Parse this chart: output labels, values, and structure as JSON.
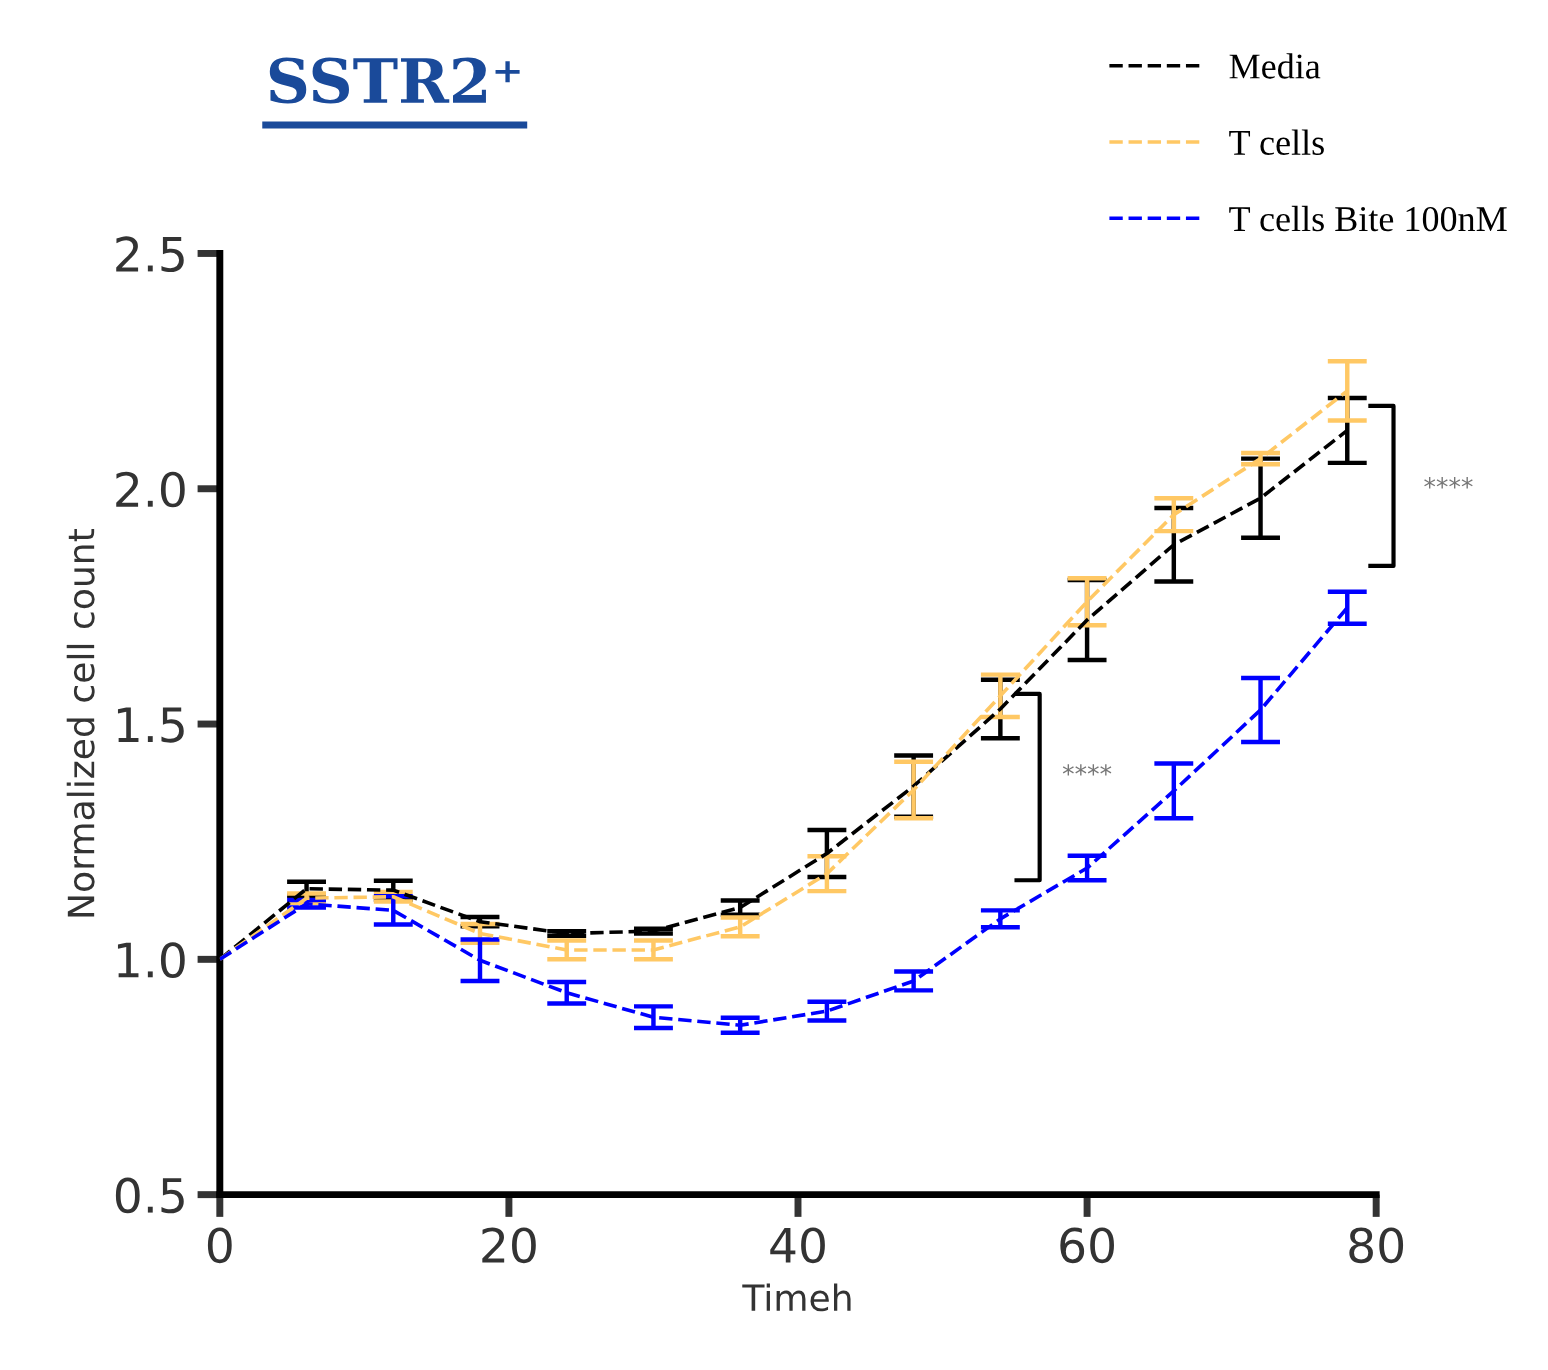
{
  "chart_data": {
    "type": "line",
    "title": "SSTR2⁺",
    "xlabel": "Timeh",
    "ylabel": "Normalized cell count",
    "x": [
      0,
      6,
      12,
      18,
      24,
      30,
      36,
      42,
      48,
      54,
      60,
      66,
      72,
      78
    ],
    "series": [
      {
        "name": "Media",
        "color": "#000000",
        "values": [
          1.0,
          1.15,
          1.147,
          1.08,
          1.055,
          1.06,
          1.11,
          1.225,
          1.368,
          1.532,
          1.721,
          1.881,
          1.98,
          2.124
        ],
        "errors": [
          null,
          0.015,
          0.02,
          0.01,
          0.005,
          0.005,
          0.015,
          0.05,
          0.065,
          0.062,
          0.085,
          0.078,
          0.084,
          0.069
        ]
      },
      {
        "name": "T cells",
        "color": "#ffc864",
        "values": [
          1.0,
          1.13,
          1.133,
          1.055,
          1.02,
          1.02,
          1.069,
          1.182,
          1.36,
          1.56,
          1.76,
          1.945,
          2.064,
          2.208
        ],
        "errors": [
          null,
          0.01,
          0.01,
          0.02,
          0.02,
          0.02,
          0.02,
          0.037,
          0.06,
          0.045,
          0.05,
          0.035,
          0.012,
          0.063
        ]
      },
      {
        "name": "T cells Bite 100nM",
        "color": "#0000ff",
        "values": [
          1.0,
          1.118,
          1.104,
          0.998,
          0.929,
          0.877,
          0.86,
          0.89,
          0.954,
          1.086,
          1.194,
          1.358,
          1.53,
          1.747
        ],
        "errors": [
          null,
          0.008,
          0.03,
          0.044,
          0.023,
          0.023,
          0.016,
          0.02,
          0.02,
          0.018,
          0.026,
          0.058,
          0.068,
          0.034
        ]
      }
    ],
    "annotations": [
      "****",
      "****"
    ],
    "xlim": [
      0,
      80
    ],
    "xticks": [
      0,
      20,
      40,
      60,
      80
    ],
    "ylim": [
      0.5,
      2.5
    ],
    "yticks": [
      {
        "value": 0.5,
        "label": "0.5"
      },
      {
        "value": 1,
        "label": "1.0"
      },
      {
        "value": 1.5,
        "label": "1.5"
      },
      {
        "value": 2,
        "label": "2.0"
      },
      {
        "value": 2.5,
        "label": "2.5"
      }
    ],
    "grid": false,
    "legend": "top right",
    "marker": "none",
    "line_style": "dashed"
  }
}
